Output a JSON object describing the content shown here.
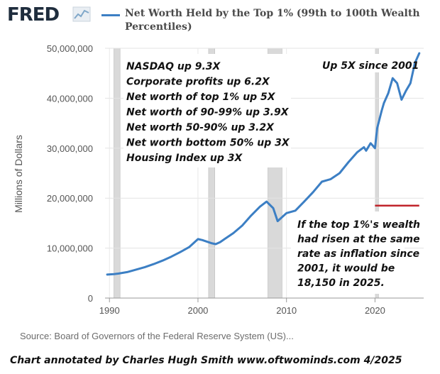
{
  "header": {
    "logo_text": "FRED",
    "legend_label": "Net Worth Held by the Top 1% (99th to 100th Wealth Percentiles)"
  },
  "chart_data": {
    "type": "line",
    "title": "",
    "xlabel": "",
    "ylabel": "Millions of Dollars",
    "xlim": [
      1989.5,
      2025.5
    ],
    "ylim": [
      0,
      50000000
    ],
    "grid": true,
    "legend_position": "top",
    "x_ticks": [
      1990,
      2000,
      2010,
      2020
    ],
    "y_ticks": [
      0,
      10000000,
      20000000,
      30000000,
      40000000,
      50000000
    ],
    "y_tick_labels": [
      "0",
      "10,000,000",
      "20,000,000",
      "30,000,000",
      "40,000,000",
      "50,000,000"
    ],
    "recessions": [
      [
        1990.5,
        1991.2
      ],
      [
        2001.2,
        2001.9
      ],
      [
        2007.9,
        2009.5
      ],
      [
        2020.1,
        2020.4
      ]
    ],
    "series": [
      {
        "name": "Net Worth Held by the Top 1% (99th to 100th Wealth Percentiles)",
        "color": "#3c7fc4",
        "x": [
          1989.75,
          1990.5,
          1991.0,
          1992.0,
          1993.0,
          1994.0,
          1995.0,
          1996.0,
          1997.0,
          1998.0,
          1999.0,
          2000.0,
          2000.5,
          2001.0,
          2001.5,
          2002.0,
          2002.5,
          2003.0,
          2004.0,
          2005.0,
          2006.0,
          2007.0,
          2007.75,
          2008.5,
          2009.0,
          2009.5,
          2010.0,
          2011.0,
          2012.0,
          2013.0,
          2014.0,
          2015.0,
          2016.0,
          2017.0,
          2018.0,
          2018.75,
          2019.0,
          2019.5,
          2020.0,
          2020.25,
          2020.75,
          2021.0,
          2021.5,
          2022.0,
          2022.5,
          2023.0,
          2023.5,
          2024.0,
          2024.5,
          2025.0
        ],
        "y": [
          4700000,
          4800000,
          4900000,
          5200000,
          5700000,
          6200000,
          6800000,
          7500000,
          8300000,
          9200000,
          10200000,
          11800000,
          11600000,
          11300000,
          11000000,
          10800000,
          11200000,
          11800000,
          13000000,
          14500000,
          16500000,
          18300000,
          19300000,
          18000000,
          15400000,
          16200000,
          17000000,
          17500000,
          19300000,
          21200000,
          23300000,
          23800000,
          25000000,
          27200000,
          29200000,
          30200000,
          29500000,
          31000000,
          30000000,
          34000000,
          37500000,
          39000000,
          41000000,
          44000000,
          43000000,
          39700000,
          41500000,
          43000000,
          47000000,
          49000000
        ]
      }
    ],
    "annotations": {
      "stats_block": [
        "NASDAQ up 9.3X",
        "Corporate profits up 6.2X",
        "Net worth of top 1% up 5X",
        "Net worth of 90-99% up 3.9X",
        "Net worth 50-90% up 3.2X",
        "Net worth bottom 50% up 3X",
        "Housing Index up 3X"
      ],
      "top_right": "Up 5X since 2001",
      "inflation_note": [
        "If the top 1%'s wealth",
        "had risen at the same",
        "rate as inflation since",
        "2001, it would be",
        "18,150 in 2025."
      ],
      "inflation_line": {
        "x": [
          2020.0,
          2025.0
        ],
        "y": 18500000,
        "color": "#c0242b"
      }
    }
  },
  "footer": {
    "source": "Source: Board of Governors of the Federal Reserve System (US)...",
    "credit": "Chart annotated by Charles Hugh Smith  www.oftwominds.com  4/2025"
  }
}
